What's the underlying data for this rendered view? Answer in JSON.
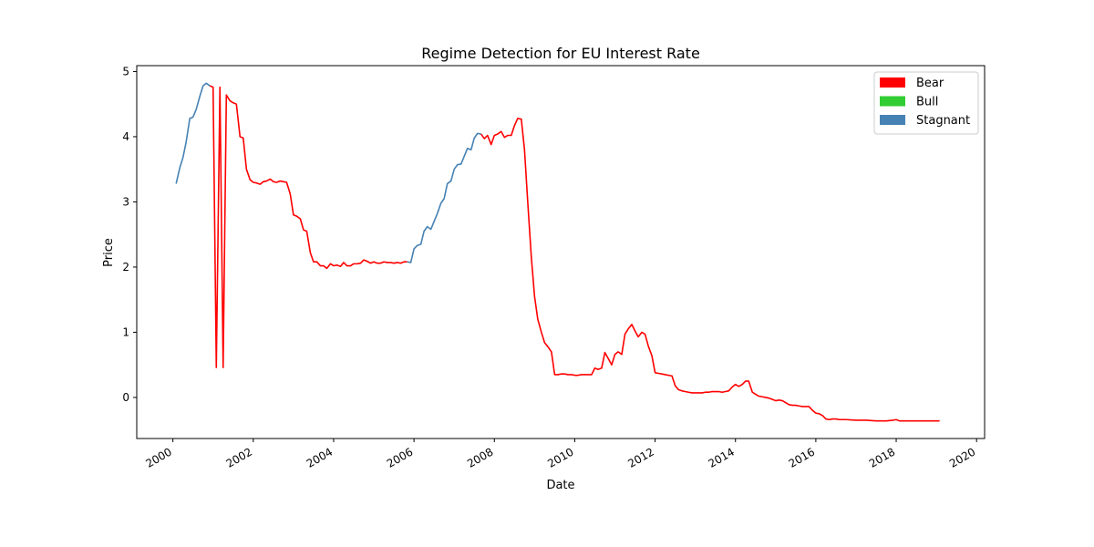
{
  "chart_data": {
    "type": "line",
    "title": "Regime Detection for EU Interest Rate",
    "xlabel": "Date",
    "ylabel": "Price",
    "xlim": [
      1999.1,
      2020.2
    ],
    "ylim": [
      -0.63,
      5.09
    ],
    "x_ticks": [
      2000,
      2002,
      2004,
      2006,
      2008,
      2010,
      2012,
      2014,
      2016,
      2018,
      2020
    ],
    "x_tick_labels": [
      "2000",
      "2002",
      "2004",
      "2006",
      "2008",
      "2010",
      "2012",
      "2014",
      "2016",
      "2018",
      "2020"
    ],
    "y_ticks": [
      0,
      1,
      2,
      3,
      4,
      5
    ],
    "y_tick_labels": [
      "0",
      "1",
      "2",
      "3",
      "4",
      "5"
    ],
    "grid": false,
    "legend_position": "top-right",
    "legend": [
      {
        "name": "Bear",
        "color": "#ff0000"
      },
      {
        "name": "Bull",
        "color": "#32cd32"
      },
      {
        "name": "Stagnant",
        "color": "#4682b4"
      }
    ],
    "series": [
      {
        "regime": "Stagnant",
        "color": "#4682b4",
        "points": [
          [
            2000.08,
            3.28
          ],
          [
            2000.17,
            3.52
          ],
          [
            2000.25,
            3.68
          ],
          [
            2000.33,
            3.92
          ],
          [
            2000.42,
            4.28
          ],
          [
            2000.5,
            4.3
          ],
          [
            2000.58,
            4.42
          ],
          [
            2000.67,
            4.62
          ],
          [
            2000.75,
            4.78
          ],
          [
            2000.83,
            4.82
          ],
          [
            2000.92,
            4.78
          ]
        ]
      },
      {
        "regime": "Bear",
        "color": "#ff0000",
        "points": [
          [
            2000.92,
            4.78
          ],
          [
            2001.0,
            4.76
          ],
          [
            2001.08,
            0.46
          ],
          [
            2001.17,
            4.76
          ],
          [
            2001.25,
            0.46
          ],
          [
            2001.33,
            4.64
          ],
          [
            2001.42,
            4.55
          ],
          [
            2001.5,
            4.52
          ],
          [
            2001.58,
            4.5
          ],
          [
            2001.67,
            4.0
          ],
          [
            2001.75,
            3.98
          ],
          [
            2001.83,
            3.5
          ],
          [
            2001.92,
            3.34
          ],
          [
            2002.0,
            3.3
          ],
          [
            2002.08,
            3.29
          ],
          [
            2002.17,
            3.27
          ],
          [
            2002.25,
            3.31
          ],
          [
            2002.33,
            3.32
          ],
          [
            2002.42,
            3.35
          ],
          [
            2002.5,
            3.31
          ],
          [
            2002.58,
            3.3
          ],
          [
            2002.67,
            3.32
          ],
          [
            2002.75,
            3.31
          ],
          [
            2002.83,
            3.3
          ],
          [
            2002.92,
            3.12
          ],
          [
            2003.0,
            2.8
          ],
          [
            2003.08,
            2.78
          ],
          [
            2003.17,
            2.74
          ],
          [
            2003.25,
            2.57
          ],
          [
            2003.33,
            2.55
          ],
          [
            2003.42,
            2.22
          ],
          [
            2003.5,
            2.08
          ],
          [
            2003.58,
            2.08
          ],
          [
            2003.67,
            2.02
          ],
          [
            2003.75,
            2.02
          ],
          [
            2003.83,
            1.98
          ],
          [
            2003.92,
            2.05
          ],
          [
            2004.0,
            2.02
          ],
          [
            2004.08,
            2.03
          ],
          [
            2004.17,
            2.01
          ],
          [
            2004.25,
            2.07
          ],
          [
            2004.33,
            2.02
          ],
          [
            2004.42,
            2.02
          ],
          [
            2004.5,
            2.05
          ],
          [
            2004.58,
            2.05
          ],
          [
            2004.67,
            2.06
          ],
          [
            2004.75,
            2.11
          ],
          [
            2004.83,
            2.09
          ],
          [
            2004.92,
            2.06
          ],
          [
            2005.0,
            2.08
          ],
          [
            2005.08,
            2.06
          ],
          [
            2005.17,
            2.06
          ],
          [
            2005.25,
            2.08
          ],
          [
            2005.33,
            2.07
          ],
          [
            2005.42,
            2.07
          ],
          [
            2005.5,
            2.06
          ],
          [
            2005.58,
            2.07
          ],
          [
            2005.67,
            2.06
          ],
          [
            2005.75,
            2.08
          ],
          [
            2005.83,
            2.08
          ]
        ]
      },
      {
        "regime": "Stagnant",
        "color": "#4682b4",
        "points": [
          [
            2005.83,
            2.08
          ],
          [
            2005.92,
            2.07
          ],
          [
            2006.0,
            2.28
          ],
          [
            2006.08,
            2.33
          ],
          [
            2006.17,
            2.35
          ],
          [
            2006.25,
            2.55
          ],
          [
            2006.33,
            2.62
          ],
          [
            2006.42,
            2.58
          ],
          [
            2006.5,
            2.7
          ],
          [
            2006.58,
            2.82
          ],
          [
            2006.67,
            2.98
          ],
          [
            2006.75,
            3.05
          ],
          [
            2006.83,
            3.28
          ],
          [
            2006.92,
            3.32
          ],
          [
            2007.0,
            3.5
          ],
          [
            2007.08,
            3.57
          ],
          [
            2007.17,
            3.58
          ],
          [
            2007.25,
            3.7
          ],
          [
            2007.33,
            3.82
          ],
          [
            2007.42,
            3.8
          ],
          [
            2007.5,
            3.98
          ],
          [
            2007.58,
            4.05
          ],
          [
            2007.67,
            4.04
          ]
        ]
      },
      {
        "regime": "Bear",
        "color": "#ff0000",
        "points": [
          [
            2007.67,
            4.04
          ],
          [
            2007.75,
            3.97
          ],
          [
            2007.83,
            4.02
          ],
          [
            2007.92,
            3.88
          ],
          [
            2008.0,
            4.02
          ],
          [
            2008.08,
            4.04
          ],
          [
            2008.17,
            4.08
          ],
          [
            2008.25,
            3.99
          ],
          [
            2008.33,
            4.02
          ],
          [
            2008.42,
            4.02
          ],
          [
            2008.5,
            4.17
          ],
          [
            2008.58,
            4.28
          ],
          [
            2008.67,
            4.27
          ],
          [
            2008.75,
            3.8
          ],
          [
            2008.83,
            3.0
          ],
          [
            2008.92,
            2.15
          ],
          [
            2009.0,
            1.55
          ],
          [
            2009.08,
            1.2
          ],
          [
            2009.17,
            1.0
          ],
          [
            2009.25,
            0.84
          ],
          [
            2009.33,
            0.78
          ],
          [
            2009.42,
            0.7
          ],
          [
            2009.5,
            0.35
          ],
          [
            2009.58,
            0.35
          ],
          [
            2009.67,
            0.36
          ],
          [
            2009.75,
            0.36
          ],
          [
            2009.83,
            0.35
          ],
          [
            2009.92,
            0.35
          ],
          [
            2010.0,
            0.34
          ],
          [
            2010.08,
            0.34
          ],
          [
            2010.17,
            0.35
          ],
          [
            2010.25,
            0.35
          ],
          [
            2010.33,
            0.35
          ],
          [
            2010.42,
            0.35
          ],
          [
            2010.5,
            0.45
          ],
          [
            2010.58,
            0.43
          ],
          [
            2010.67,
            0.45
          ],
          [
            2010.75,
            0.69
          ],
          [
            2010.83,
            0.6
          ],
          [
            2010.92,
            0.5
          ],
          [
            2011.0,
            0.66
          ],
          [
            2011.08,
            0.7
          ],
          [
            2011.17,
            0.66
          ],
          [
            2011.25,
            0.97
          ],
          [
            2011.33,
            1.05
          ],
          [
            2011.42,
            1.12
          ],
          [
            2011.5,
            1.02
          ],
          [
            2011.58,
            0.93
          ],
          [
            2011.67,
            1.0
          ],
          [
            2011.75,
            0.97
          ],
          [
            2011.83,
            0.79
          ],
          [
            2011.92,
            0.64
          ],
          [
            2012.0,
            0.38
          ],
          [
            2012.08,
            0.37
          ],
          [
            2012.17,
            0.36
          ],
          [
            2012.25,
            0.35
          ],
          [
            2012.33,
            0.34
          ],
          [
            2012.42,
            0.33
          ],
          [
            2012.5,
            0.18
          ],
          [
            2012.58,
            0.12
          ],
          [
            2012.67,
            0.1
          ],
          [
            2012.75,
            0.09
          ],
          [
            2012.83,
            0.08
          ],
          [
            2012.92,
            0.07
          ],
          [
            2013.0,
            0.07
          ],
          [
            2013.08,
            0.07
          ],
          [
            2013.17,
            0.07
          ],
          [
            2013.25,
            0.08
          ],
          [
            2013.33,
            0.08
          ],
          [
            2013.42,
            0.09
          ],
          [
            2013.5,
            0.09
          ],
          [
            2013.58,
            0.09
          ],
          [
            2013.67,
            0.08
          ],
          [
            2013.75,
            0.09
          ],
          [
            2013.83,
            0.1
          ],
          [
            2013.92,
            0.16
          ],
          [
            2014.0,
            0.2
          ],
          [
            2014.08,
            0.17
          ],
          [
            2014.17,
            0.2
          ],
          [
            2014.25,
            0.25
          ],
          [
            2014.33,
            0.25
          ],
          [
            2014.42,
            0.08
          ],
          [
            2014.5,
            0.05
          ],
          [
            2014.58,
            0.02
          ],
          [
            2014.67,
            0.01
          ],
          [
            2014.75,
            0.0
          ],
          [
            2014.83,
            -0.01
          ],
          [
            2014.92,
            -0.03
          ],
          [
            2015.0,
            -0.05
          ],
          [
            2015.08,
            -0.04
          ],
          [
            2015.17,
            -0.05
          ],
          [
            2015.25,
            -0.08
          ],
          [
            2015.33,
            -0.11
          ],
          [
            2015.42,
            -0.12
          ],
          [
            2015.5,
            -0.12
          ],
          [
            2015.58,
            -0.13
          ],
          [
            2015.67,
            -0.14
          ],
          [
            2015.75,
            -0.14
          ],
          [
            2015.83,
            -0.14
          ],
          [
            2015.92,
            -0.2
          ],
          [
            2016.0,
            -0.24
          ],
          [
            2016.08,
            -0.25
          ],
          [
            2016.17,
            -0.28
          ],
          [
            2016.25,
            -0.33
          ],
          [
            2016.33,
            -0.34
          ],
          [
            2016.42,
            -0.33
          ],
          [
            2016.5,
            -0.33
          ],
          [
            2016.58,
            -0.34
          ],
          [
            2016.75,
            -0.34
          ],
          [
            2017.0,
            -0.35
          ],
          [
            2017.25,
            -0.35
          ],
          [
            2017.5,
            -0.36
          ],
          [
            2017.75,
            -0.36
          ],
          [
            2017.92,
            -0.35
          ],
          [
            2018.0,
            -0.34
          ],
          [
            2018.08,
            -0.36
          ],
          [
            2018.25,
            -0.36
          ],
          [
            2018.5,
            -0.36
          ],
          [
            2018.75,
            -0.36
          ],
          [
            2019.0,
            -0.36
          ],
          [
            2019.08,
            -0.36
          ]
        ]
      }
    ]
  }
}
